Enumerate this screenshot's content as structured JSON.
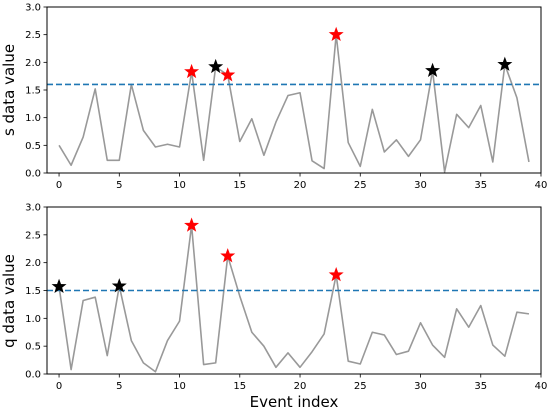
{
  "chart_data": [
    {
      "type": "line",
      "xlabel": "",
      "ylabel": "s data value",
      "xlim": [
        -1,
        40
      ],
      "ylim": [
        0,
        3.0
      ],
      "xticks": [
        "0",
        "5",
        "10",
        "15",
        "20",
        "25",
        "30",
        "35",
        "40"
      ],
      "yticks": [
        "0.0",
        "0.5",
        "1.0",
        "1.5",
        "2.0",
        "2.5",
        "3.0"
      ],
      "threshold": 1.6,
      "colors": {
        "line": "#999999",
        "threshold": "#1f77b4",
        "marker_red": "#ff0000",
        "marker_black": "#000000"
      },
      "series": [
        {
          "values": [
            0.5,
            0.14,
            0.65,
            1.52,
            0.23,
            0.23,
            1.6,
            0.77,
            0.47,
            0.52,
            0.47,
            1.83,
            0.23,
            1.92,
            1.77,
            0.57,
            0.98,
            0.32,
            0.92,
            1.4,
            1.45,
            0.22,
            0.08,
            2.5,
            0.55,
            0.12,
            1.15,
            0.38,
            0.6,
            0.3,
            0.6,
            1.85,
            0.02,
            1.06,
            0.82,
            1.22,
            0.2,
            1.96,
            1.36,
            0.2
          ]
        }
      ],
      "markers": [
        {
          "x": 11,
          "y": 1.83,
          "color": "red"
        },
        {
          "x": 13,
          "y": 1.92,
          "color": "black"
        },
        {
          "x": 14,
          "y": 1.77,
          "color": "red"
        },
        {
          "x": 23,
          "y": 2.5,
          "color": "red"
        },
        {
          "x": 31,
          "y": 1.85,
          "color": "black"
        },
        {
          "x": 37,
          "y": 1.96,
          "color": "black"
        }
      ]
    },
    {
      "type": "line",
      "xlabel": "Event index",
      "ylabel": "q data value",
      "xlim": [
        -1,
        40
      ],
      "ylim": [
        0,
        3.0
      ],
      "xticks": [
        "0",
        "5",
        "10",
        "15",
        "20",
        "25",
        "30",
        "35",
        "40"
      ],
      "yticks": [
        "0.0",
        "0.5",
        "1.0",
        "1.5",
        "2.0",
        "2.5",
        "3.0"
      ],
      "threshold": 1.5,
      "colors": {
        "line": "#999999",
        "threshold": "#1f77b4",
        "marker_red": "#ff0000",
        "marker_black": "#000000"
      },
      "series": [
        {
          "values": [
            1.57,
            0.08,
            1.32,
            1.38,
            0.33,
            1.58,
            0.6,
            0.2,
            0.04,
            0.6,
            0.95,
            2.67,
            0.17,
            0.2,
            2.12,
            1.4,
            0.75,
            0.5,
            0.12,
            0.38,
            0.12,
            0.4,
            0.72,
            1.78,
            0.23,
            0.18,
            0.75,
            0.7,
            0.35,
            0.41,
            0.92,
            0.52,
            0.3,
            1.17,
            0.84,
            1.23,
            0.52,
            0.32,
            1.11,
            1.08
          ]
        }
      ],
      "markers": [
        {
          "x": 0,
          "y": 1.57,
          "color": "black"
        },
        {
          "x": 5,
          "y": 1.58,
          "color": "black"
        },
        {
          "x": 11,
          "y": 2.67,
          "color": "red"
        },
        {
          "x": 14,
          "y": 2.12,
          "color": "red"
        },
        {
          "x": 23,
          "y": 1.78,
          "color": "red"
        }
      ]
    }
  ]
}
